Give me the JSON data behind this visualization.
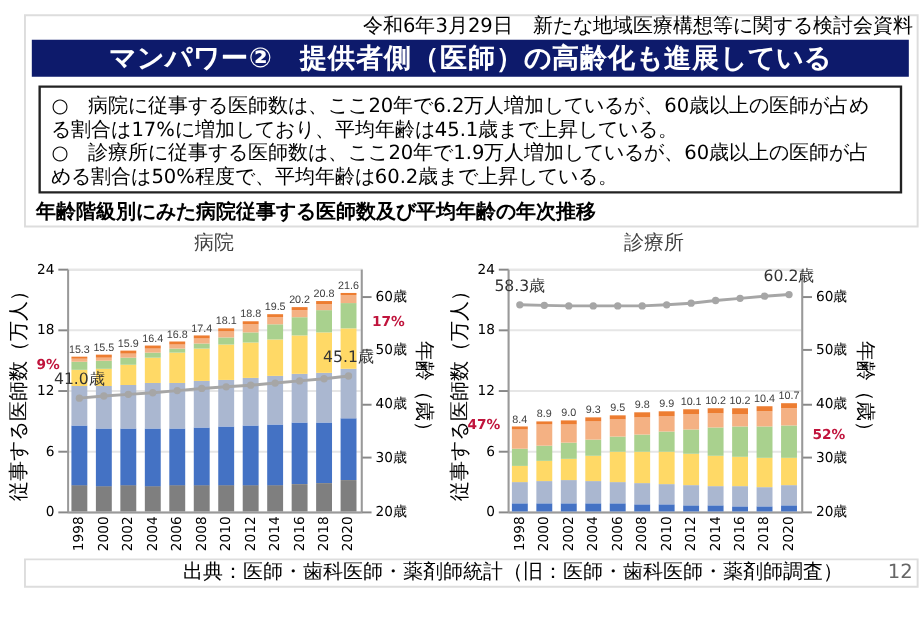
{
  "chart_data": [
    {
      "type": "bar",
      "title": "病院",
      "stacked": true,
      "legend": false,
      "grid": "y",
      "categories": [
        "1998",
        "2000",
        "2002",
        "2004",
        "2006",
        "2008",
        "2010",
        "2012",
        "2014",
        "2016",
        "2018",
        "2020"
      ],
      "ylim": [
        0,
        24
      ],
      "yticks": [
        0,
        6,
        12,
        18,
        24
      ],
      "ylabel": "従事する医師数（万人）",
      "y2lim": [
        20,
        65
      ],
      "y2ticks": [
        {
          "value": 20,
          "label": "20歳"
        },
        {
          "value": 30,
          "label": "30歳"
        },
        {
          "value": 40,
          "label": "40歳"
        },
        {
          "value": 50,
          "label": "50歳"
        },
        {
          "value": 60,
          "label": "60歳"
        }
      ],
      "y2label": "年齢（歳）",
      "totals": [
        "15.3",
        "15.5",
        "15.9",
        "16.4",
        "16.8",
        "17.4",
        "18.1",
        "18.8",
        "19.5",
        "20.2",
        "20.8",
        "21.6"
      ],
      "series": [
        {
          "color": "#7f7f7f",
          "values": [
            2.6,
            2.5,
            2.6,
            2.5,
            2.6,
            2.6,
            2.6,
            2.6,
            2.6,
            2.7,
            2.8,
            3.1
          ]
        },
        {
          "color": "#4472c4",
          "values": [
            5.9,
            5.7,
            5.6,
            5.7,
            5.6,
            5.7,
            5.8,
            5.9,
            6.0,
            6.1,
            6.0,
            6.1
          ]
        },
        {
          "color": "#aab7d0",
          "values": [
            3.9,
            4.2,
            4.3,
            4.5,
            4.5,
            4.6,
            4.6,
            4.7,
            4.8,
            4.8,
            4.9,
            4.9
          ]
        },
        {
          "color": "#ffd966",
          "values": [
            1.6,
            1.7,
            2.0,
            2.5,
            3.0,
            3.2,
            3.5,
            3.5,
            3.6,
            3.8,
            4.0,
            4.0
          ]
        },
        {
          "color": "#a9d18e",
          "values": [
            0.8,
            0.8,
            0.7,
            0.5,
            0.4,
            0.5,
            0.7,
            1.0,
            1.5,
            1.8,
            2.2,
            2.5
          ]
        },
        {
          "color": "#f4b183",
          "values": [
            0.3,
            0.3,
            0.4,
            0.4,
            0.4,
            0.5,
            0.6,
            0.8,
            0.7,
            0.7,
            0.6,
            0.8
          ]
        },
        {
          "color": "#ed7d31",
          "values": [
            0.2,
            0.3,
            0.3,
            0.3,
            0.3,
            0.3,
            0.3,
            0.3,
            0.3,
            0.3,
            0.3,
            0.2
          ]
        },
        {
          "type": "line",
          "axis": "y2",
          "color": "#a6a6a6",
          "marker": "circle",
          "values": [
            41.0,
            41.4,
            41.7,
            42.0,
            42.4,
            42.8,
            43.1,
            43.4,
            43.8,
            44.2,
            44.6,
            45.1
          ],
          "value_labels": [
            "41.0歳",
            null,
            null,
            null,
            null,
            null,
            null,
            null,
            null,
            null,
            null,
            "45.1歳"
          ]
        }
      ],
      "annotations": [
        "令和6年3月29日　新たな地域医療構想等に関する検討会資料",
        "マンパワー②　提供者側（医師）の高齢化も進展している",
        "○　病院に従事する医師数は、ここ20年で6.2万人増加しているが、60歳以上の医師が占める割合は17%に増加しており、平均年齢は45.1歳まで上昇している。",
        "○　診療所に従事する医師数は、ここ20年で1.9万人増加しているが、60歳以上の医師が占める割合は50%程度で、平均年齢は60.2歳まで上昇している。",
        "年齢階級別にみた病院従事する医師数及び平均年齢の年次推移",
        {
          "text": "9%",
          "x": "1998",
          "y": 14.5
        },
        {
          "text": "17%",
          "x": "2020",
          "y": 18.7
        }
      ]
    },
    {
      "type": "bar",
      "title": "診療所",
      "stacked": true,
      "legend": false,
      "grid": "y",
      "categories": [
        "1998",
        "2000",
        "2002",
        "2004",
        "2006",
        "2008",
        "2010",
        "2012",
        "2014",
        "2016",
        "2018",
        "2020"
      ],
      "ylim": [
        0,
        24
      ],
      "yticks": [
        0,
        6,
        12,
        18,
        24
      ],
      "ylabel": "従事する医師数（万人）",
      "y2lim": [
        20,
        65
      ],
      "y2ticks": [
        {
          "value": 20,
          "label": "20歳"
        },
        {
          "value": 30,
          "label": "30歳"
        },
        {
          "value": 40,
          "label": "40歳"
        },
        {
          "value": 50,
          "label": "50歳"
        },
        {
          "value": 60,
          "label": "60歳"
        }
      ],
      "y2label": "年齢（歳）",
      "totals": [
        "8.4",
        "8.9",
        "9.0",
        "9.3",
        "9.5",
        "9.8",
        "9.9",
        "10.1",
        "10.2",
        "10.2",
        "10.4",
        "10.7"
      ],
      "series": [
        {
          "color": "#4472c4",
          "values": [
            0.8,
            0.8,
            0.8,
            0.8,
            0.8,
            0.7,
            0.7,
            0.6,
            0.6,
            0.5,
            0.5,
            0.6
          ]
        },
        {
          "color": "#aab7d0",
          "values": [
            2.1,
            2.2,
            2.3,
            2.2,
            2.1,
            2.1,
            2.0,
            2.0,
            1.9,
            2.0,
            1.9,
            2.0
          ]
        },
        {
          "color": "#ffd966",
          "values": [
            1.6,
            2.0,
            2.1,
            2.5,
            3.0,
            3.1,
            3.2,
            3.1,
            3.0,
            2.9,
            2.9,
            2.7
          ]
        },
        {
          "color": "#a9d18e",
          "values": [
            1.7,
            1.5,
            1.6,
            1.6,
            1.5,
            1.7,
            2.0,
            2.4,
            2.8,
            3.0,
            3.1,
            3.2
          ]
        },
        {
          "color": "#f4b183",
          "values": [
            1.9,
            2.1,
            1.8,
            1.8,
            1.7,
            1.7,
            1.5,
            1.5,
            1.4,
            1.2,
            1.5,
            1.7
          ]
        },
        {
          "color": "#ed7d31",
          "values": [
            0.3,
            0.3,
            0.4,
            0.4,
            0.4,
            0.5,
            0.5,
            0.5,
            0.5,
            0.6,
            0.5,
            0.5
          ]
        },
        {
          "type": "line",
          "axis": "y2",
          "color": "#a6a6a6",
          "marker": "circle",
          "values": [
            58.3,
            58.2,
            58.1,
            58.1,
            58.1,
            58.1,
            58.3,
            58.6,
            59.1,
            59.5,
            59.9,
            60.2
          ],
          "value_labels": [
            "58.3歳",
            null,
            null,
            null,
            null,
            null,
            null,
            null,
            null,
            null,
            null,
            "60.2歳"
          ]
        }
      ],
      "annotations": [
        "出典：医師・歯科医師・薬剤師統計（旧：医師・歯科医師・薬剤師調査）",
        "12",
        {
          "text": "47%",
          "x": "1998",
          "y": 8.5
        },
        {
          "text": "52%",
          "x": "2020",
          "y": 7.5
        }
      ]
    }
  ]
}
